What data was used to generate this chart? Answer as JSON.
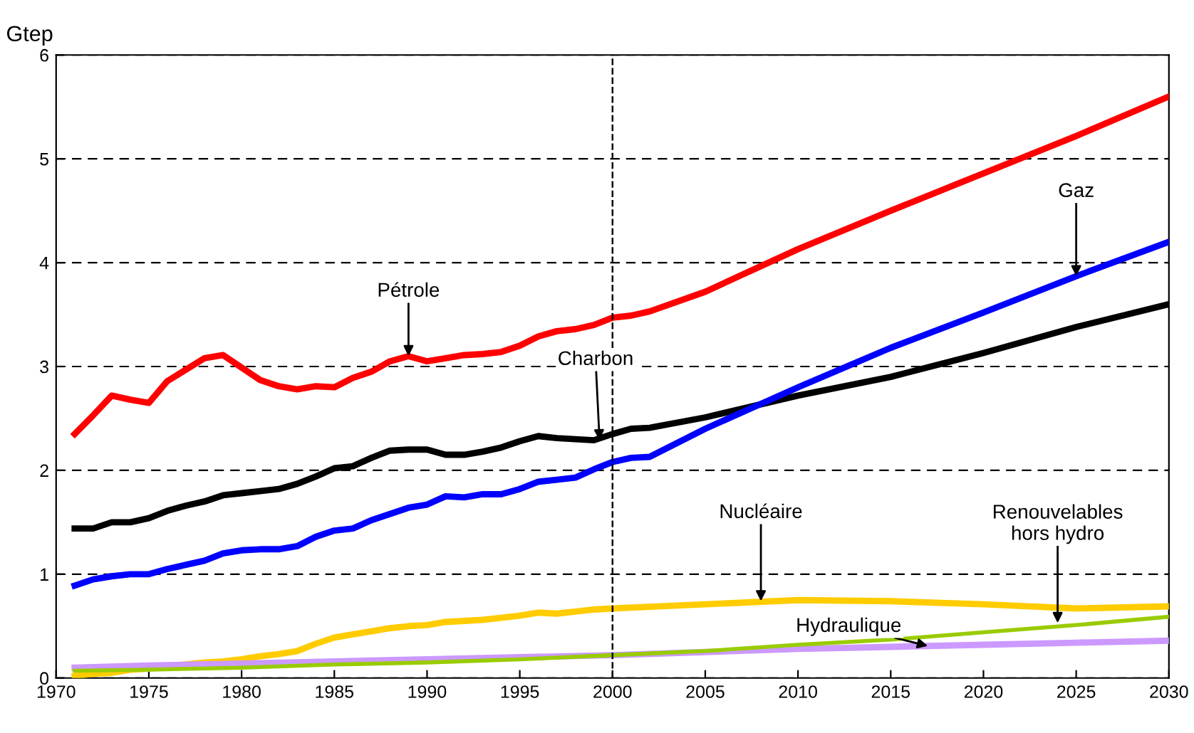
{
  "chart_data": {
    "type": "line",
    "ylabel": "Gtep",
    "xlim": [
      1970,
      2030
    ],
    "xticks": [
      1970,
      1975,
      1980,
      1985,
      1990,
      1995,
      2000,
      2005,
      2010,
      2015,
      2020,
      2025,
      2030
    ],
    "ylim": [
      0,
      6
    ],
    "yticks": [
      0,
      1,
      2,
      3,
      4,
      5,
      6
    ],
    "grid": "y",
    "marker": "none",
    "line_style": "solid",
    "legend": false,
    "ref_lines": [
      {
        "axis": "x",
        "value": 2000,
        "color": "#000000",
        "line_style": "dashed"
      }
    ],
    "series": [
      {
        "color": "#ff0000",
        "x": [
          1971,
          1972,
          1973,
          1974,
          1975,
          1976,
          1977,
          1978,
          1979,
          1980,
          1981,
          1982,
          1983,
          1984,
          1985,
          1986,
          1987,
          1988,
          1989,
          1990,
          1991,
          1992,
          1993,
          1994,
          1995,
          1996,
          1997,
          1998,
          1999,
          2000,
          2001,
          2002,
          2005,
          2010,
          2015,
          2020,
          2025,
          2030
        ],
        "values": [
          2.35,
          2.53,
          2.72,
          2.68,
          2.65,
          2.86,
          2.97,
          3.08,
          3.11,
          2.99,
          2.87,
          2.81,
          2.78,
          2.81,
          2.8,
          2.89,
          2.95,
          3.05,
          3.1,
          3.05,
          3.08,
          3.11,
          3.12,
          3.14,
          3.2,
          3.29,
          3.34,
          3.36,
          3.4,
          3.47,
          3.49,
          3.53,
          3.72,
          4.13,
          4.5,
          4.86,
          5.22,
          5.6
        ]
      },
      {
        "color": "#000000",
        "x": [
          1971,
          1972,
          1973,
          1974,
          1975,
          1976,
          1977,
          1978,
          1979,
          1980,
          1981,
          1982,
          1983,
          1984,
          1985,
          1986,
          1987,
          1988,
          1989,
          1990,
          1991,
          1992,
          1993,
          1994,
          1995,
          1996,
          1997,
          1998,
          1999,
          2000,
          2001,
          2002,
          2005,
          2010,
          2015,
          2020,
          2025,
          2030
        ],
        "values": [
          1.44,
          1.44,
          1.5,
          1.5,
          1.54,
          1.61,
          1.66,
          1.7,
          1.76,
          1.78,
          1.8,
          1.82,
          1.87,
          1.94,
          2.02,
          2.04,
          2.12,
          2.19,
          2.2,
          2.2,
          2.15,
          2.15,
          2.18,
          2.22,
          2.28,
          2.33,
          2.31,
          2.3,
          2.29,
          2.35,
          2.4,
          2.41,
          2.51,
          2.72,
          2.9,
          3.13,
          3.38,
          3.6
        ]
      },
      {
        "color": "#0000ff",
        "x": [
          1971,
          1972,
          1973,
          1974,
          1975,
          1976,
          1977,
          1978,
          1979,
          1980,
          1981,
          1982,
          1983,
          1984,
          1985,
          1986,
          1987,
          1988,
          1989,
          1990,
          1991,
          1992,
          1993,
          1994,
          1995,
          1996,
          1997,
          1998,
          1999,
          2000,
          2001,
          2002,
          2005,
          2010,
          2015,
          2020,
          2025,
          2030
        ],
        "values": [
          0.89,
          0.95,
          0.98,
          1.0,
          1.0,
          1.05,
          1.09,
          1.13,
          1.2,
          1.23,
          1.24,
          1.24,
          1.27,
          1.36,
          1.42,
          1.44,
          1.52,
          1.58,
          1.64,
          1.67,
          1.75,
          1.74,
          1.77,
          1.77,
          1.82,
          1.89,
          1.91,
          1.93,
          2.01,
          2.08,
          2.12,
          2.13,
          2.4,
          2.8,
          3.18,
          3.52,
          3.87,
          4.2
        ]
      },
      {
        "color": "#ffcc00",
        "x": [
          1971,
          1972,
          1973,
          1974,
          1975,
          1976,
          1977,
          1978,
          1979,
          1980,
          1981,
          1982,
          1983,
          1984,
          1985,
          1986,
          1987,
          1988,
          1989,
          1990,
          1991,
          1992,
          1993,
          1994,
          1995,
          1996,
          1997,
          1998,
          1999,
          2000,
          2005,
          2010,
          2015,
          2020,
          2025,
          2030
        ],
        "values": [
          0.02,
          0.04,
          0.05,
          0.08,
          0.09,
          0.11,
          0.13,
          0.15,
          0.16,
          0.18,
          0.21,
          0.23,
          0.26,
          0.33,
          0.39,
          0.42,
          0.45,
          0.48,
          0.5,
          0.51,
          0.54,
          0.55,
          0.56,
          0.58,
          0.6,
          0.63,
          0.62,
          0.64,
          0.66,
          0.67,
          0.71,
          0.75,
          0.74,
          0.71,
          0.67,
          0.69
        ]
      },
      {
        "color": "#cc99ff",
        "x": [
          1971,
          1975,
          1980,
          1985,
          1990,
          1995,
          2000,
          2005,
          2010,
          2015,
          2020,
          2025,
          2030
        ],
        "values": [
          0.1,
          0.12,
          0.14,
          0.16,
          0.18,
          0.2,
          0.22,
          0.25,
          0.28,
          0.3,
          0.32,
          0.34,
          0.36
        ]
      },
      {
        "color": "#99cc00",
        "x": [
          1971,
          1975,
          1980,
          1985,
          1990,
          1995,
          2000,
          2005,
          2010,
          2015,
          2020,
          2025,
          2030
        ],
        "values": [
          0.07,
          0.08,
          0.1,
          0.13,
          0.15,
          0.18,
          0.22,
          0.26,
          0.32,
          0.37,
          0.44,
          0.51,
          0.59
        ]
      }
    ],
    "annotations": [
      {
        "text": "Pétrole",
        "x": 1989,
        "y": 3.1
      },
      {
        "text": "Charbon",
        "x": 1999.3,
        "y": 2.29
      },
      {
        "text": "Gaz",
        "x": 2025,
        "y": 3.87
      },
      {
        "text": "Nucléaire",
        "x": 2008,
        "y": 0.74
      },
      {
        "text": "Renouvelables\nhors hydro",
        "x": 2024,
        "y": 0.53
      },
      {
        "text": "Hydraulique",
        "x": 2017,
        "y": 0.31
      }
    ]
  }
}
